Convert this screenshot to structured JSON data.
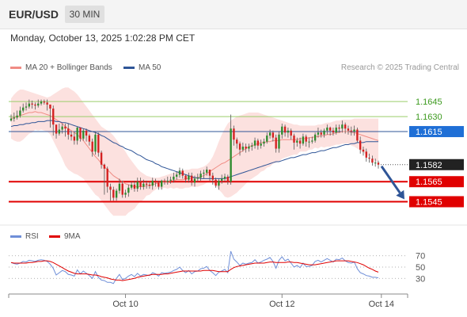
{
  "header": {
    "symbol": "EUR/USD",
    "timeframe": "30 MIN"
  },
  "datetime": "Monday, October 13, 2025 1:02:28 PM CET",
  "legend": [
    {
      "label": "MA 20 + Bollinger Bands",
      "color": "#f08c84"
    },
    {
      "label": "MA 50",
      "color": "#2f5597"
    }
  ],
  "credit": "Research © 2025 Trading Central",
  "rsi_legend": [
    {
      "label": "RSI",
      "color": "#6f8fd8"
    },
    {
      "label": "9MA",
      "color": "#e00000"
    }
  ],
  "colors": {
    "up": "#2e8b2e",
    "down": "#d42020",
    "resistance": "#9acd6a",
    "pivot": "#2f5597",
    "support": "#e00000",
    "forecast_arrow": "#2f5597"
  },
  "chart_data": [
    {
      "type": "candlestick",
      "ylim": [
        1.1528,
        1.1672
      ],
      "x_ticks": [
        "Oct 10",
        "Oct 12",
        "Oct 14"
      ],
      "current_price": "1.1582",
      "levels": [
        {
          "value": 1.1645,
          "label": "1.1645",
          "kind": "resistance"
        },
        {
          "value": 1.163,
          "label": "1.1630",
          "kind": "resistance"
        },
        {
          "value": 1.1615,
          "label": "1.1615",
          "kind": "pivot"
        },
        {
          "value": 1.1565,
          "label": "1.1565",
          "kind": "support"
        },
        {
          "value": 1.1545,
          "label": "1.1545",
          "kind": "support"
        }
      ],
      "close": [
        1.1628,
        1.1629,
        1.1631,
        1.1636,
        1.1639,
        1.164,
        1.1643,
        1.1642,
        1.1641,
        1.1643,
        1.1645,
        1.1644,
        1.1642,
        1.1638,
        1.1622,
        1.1613,
        1.1617,
        1.162,
        1.1618,
        1.1612,
        1.161,
        1.1606,
        1.1619,
        1.1608,
        1.1616,
        1.1611,
        1.1605,
        1.1595,
        1.1612,
        1.1594,
        1.1582,
        1.1578,
        1.156,
        1.1557,
        1.1549,
        1.1556,
        1.1563,
        1.1552,
        1.1554,
        1.1559,
        1.1562,
        1.1558,
        1.1565,
        1.156,
        1.1563,
        1.1562,
        1.1561,
        1.1566,
        1.1564,
        1.156,
        1.1566,
        1.1565,
        1.1566,
        1.1567,
        1.157,
        1.1572,
        1.1576,
        1.1571,
        1.1567,
        1.1571,
        1.1564,
        1.1568,
        1.1569,
        1.1573,
        1.1574,
        1.1577,
        1.1571,
        1.1567,
        1.1561,
        1.1566,
        1.1568,
        1.157,
        1.1565,
        1.1618,
        1.1607,
        1.1603,
        1.1597,
        1.16,
        1.1598,
        1.16,
        1.1601,
        1.1606,
        1.1601,
        1.1603,
        1.1605,
        1.1611,
        1.1614,
        1.1609,
        1.1598,
        1.1612,
        1.162,
        1.1614,
        1.1616,
        1.1611,
        1.1604,
        1.1606,
        1.1603,
        1.161,
        1.1605,
        1.1605,
        1.1606,
        1.1612,
        1.1614,
        1.1612,
        1.1616,
        1.1619,
        1.1616,
        1.1614,
        1.1619,
        1.1618,
        1.1622,
        1.1618,
        1.1616,
        1.1615,
        1.1617,
        1.1606,
        1.1597,
        1.1595,
        1.1589,
        1.1588,
        1.1584,
        1.1584,
        1.1582
      ],
      "high": [
        1.1632,
        1.1634,
        1.1636,
        1.164,
        1.1643,
        1.1644,
        1.1647,
        1.1646,
        1.1644,
        1.1647,
        1.1647,
        1.1647,
        1.1647,
        1.1641,
        1.1641,
        1.1618,
        1.1623,
        1.1623,
        1.1623,
        1.1623,
        1.1615,
        1.1615,
        1.162,
        1.1619,
        1.1618,
        1.1618,
        1.1613,
        1.1608,
        1.1615,
        1.1614,
        1.1596,
        1.1583,
        1.158,
        1.1563,
        1.156,
        1.1558,
        1.1568,
        1.1566,
        1.1557,
        1.1562,
        1.1565,
        1.1566,
        1.1569,
        1.1569,
        1.1567,
        1.1566,
        1.1565,
        1.1569,
        1.1568,
        1.1566,
        1.1567,
        1.1568,
        1.157,
        1.157,
        1.1574,
        1.1575,
        1.1579,
        1.1578,
        1.1572,
        1.1574,
        1.1574,
        1.1571,
        1.1573,
        1.1576,
        1.1577,
        1.158,
        1.1577,
        1.1574,
        1.1569,
        1.1568,
        1.1572,
        1.1573,
        1.1572,
        1.1632,
        1.1621,
        1.1609,
        1.1605,
        1.1604,
        1.1603,
        1.1603,
        1.1604,
        1.1609,
        1.1608,
        1.1607,
        1.1608,
        1.1614,
        1.1617,
        1.1616,
        1.1612,
        1.1615,
        1.1623,
        1.1622,
        1.1619,
        1.1618,
        1.1613,
        1.1609,
        1.1609,
        1.1613,
        1.1612,
        1.1609,
        1.161,
        1.1614,
        1.1619,
        1.1617,
        1.1618,
        1.1622,
        1.162,
        1.1619,
        1.1622,
        1.1622,
        1.1626,
        1.1624,
        1.1621,
        1.162,
        1.1621,
        1.1619,
        1.161,
        1.16,
        1.1598,
        1.1593,
        1.1591,
        1.1588,
        1.1586
      ],
      "low": [
        1.1625,
        1.1625,
        1.1627,
        1.1629,
        1.1634,
        1.1636,
        1.1638,
        1.1638,
        1.1637,
        1.1639,
        1.1641,
        1.1642,
        1.1636,
        1.1619,
        1.1611,
        1.1608,
        1.1611,
        1.1613,
        1.161,
        1.1607,
        1.1606,
        1.1602,
        1.1602,
        1.1605,
        1.1606,
        1.1605,
        1.1601,
        1.159,
        1.1592,
        1.159,
        1.1578,
        1.1552,
        1.1554,
        1.1546,
        1.1546,
        1.1546,
        1.1553,
        1.1549,
        1.1549,
        1.155,
        1.1557,
        1.1555,
        1.1555,
        1.1557,
        1.1557,
        1.1558,
        1.1558,
        1.1557,
        1.156,
        1.1557,
        1.1557,
        1.1562,
        1.1562,
        1.1563,
        1.1564,
        1.1567,
        1.1569,
        1.1568,
        1.1564,
        1.1564,
        1.1561,
        1.156,
        1.1565,
        1.1566,
        1.1568,
        1.1571,
        1.1566,
        1.1562,
        1.1559,
        1.1557,
        1.1563,
        1.1565,
        1.1562,
        1.1562,
        1.1601,
        1.1598,
        1.1591,
        1.1595,
        1.1594,
        1.1595,
        1.1596,
        1.1598,
        1.1597,
        1.1598,
        1.16,
        1.1603,
        1.1608,
        1.1605,
        1.1594,
        1.1594,
        1.1608,
        1.161,
        1.1609,
        1.1607,
        1.1597,
        1.16,
        1.1598,
        1.1601,
        1.16,
        1.1599,
        1.1603,
        1.1604,
        1.1609,
        1.1609,
        1.1609,
        1.1612,
        1.1611,
        1.1611,
        1.1612,
        1.1614,
        1.1614,
        1.1613,
        1.1612,
        1.1611,
        1.1611,
        1.1604,
        1.1593,
        1.1591,
        1.1585,
        1.1584,
        1.1581,
        1.158,
        1.1578
      ],
      "ma20": [
        1.1628,
        1.1629,
        1.163,
        1.1631,
        1.1632,
        1.1633,
        1.1634,
        1.1634,
        1.1635,
        1.1634,
        1.1634,
        1.1633,
        1.1632,
        1.1631,
        1.1629,
        1.1627,
        1.1625,
        1.1623,
        1.162,
        1.1618,
        1.1616,
        1.1614,
        1.1612,
        1.1609,
        1.1606,
        1.1602,
        1.1598,
        1.1594,
        1.159,
        1.1587,
        1.1583,
        1.158,
        1.1577,
        1.1574,
        1.1571,
        1.1569,
        1.1567,
        1.1565,
        1.1563,
        1.1562,
        1.1561,
        1.156,
        1.156,
        1.156,
        1.156,
        1.1561,
        1.1561,
        1.1562,
        1.1563,
        1.1564,
        1.1564,
        1.1565,
        1.1565,
        1.1566,
        1.1566,
        1.1567,
        1.1567,
        1.1567,
        1.1568,
        1.1568,
        1.1569,
        1.1569,
        1.1569,
        1.157,
        1.1571,
        1.1573,
        1.1575,
        1.1577,
        1.1579,
        1.1581,
        1.1583,
        1.1584,
        1.1586,
        1.1588,
        1.159,
        1.1592,
        1.1594,
        1.1596,
        1.1598,
        1.16,
        1.1601,
        1.1602,
        1.1603,
        1.1604,
        1.1604,
        1.1605,
        1.1605,
        1.1606,
        1.1606,
        1.1606,
        1.1607,
        1.1607,
        1.1607,
        1.1607,
        1.1607,
        1.1607,
        1.1608,
        1.1608,
        1.1608,
        1.1609,
        1.1609,
        1.161,
        1.161,
        1.1611,
        1.1611,
        1.1612,
        1.1612,
        1.1613,
        1.1614,
        1.1614,
        1.1615,
        1.1615,
        1.1615,
        1.1614,
        1.1614,
        1.1613,
        1.1612,
        1.1611,
        1.161,
        1.1609,
        1.1608,
        1.1607,
        1.1606
      ],
      "bb_upper": [
        1.1648,
        1.1652,
        1.1655,
        1.1657,
        1.1657,
        1.1656,
        1.1655,
        1.1654,
        1.1653,
        1.1652,
        1.1651,
        1.165,
        1.1649,
        1.165,
        1.1652,
        1.1654,
        1.1656,
        1.1658,
        1.1659,
        1.1659,
        1.1657,
        1.1655,
        1.1652,
        1.1648,
        1.1644,
        1.164,
        1.1636,
        1.1632,
        1.1628,
        1.1624,
        1.162,
        1.1618,
        1.1616,
        1.1614,
        1.1611,
        1.1607,
        1.1603,
        1.1599,
        1.1595,
        1.159,
        1.1586,
        1.1582,
        1.1578,
        1.1575,
        1.1573,
        1.1571,
        1.157,
        1.1569,
        1.1569,
        1.1569,
        1.157,
        1.1571,
        1.1572,
        1.1573,
        1.1574,
        1.1575,
        1.1576,
        1.1576,
        1.1577,
        1.1577,
        1.1578,
        1.1578,
        1.1578,
        1.1579,
        1.158,
        1.1582,
        1.1585,
        1.159,
        1.1597,
        1.1605,
        1.1612,
        1.1618,
        1.1623,
        1.1626,
        1.1628,
        1.163,
        1.1631,
        1.1632,
        1.1633,
        1.1634,
        1.1634,
        1.1634,
        1.1634,
        1.1633,
        1.1632,
        1.1631,
        1.163,
        1.1629,
        1.1628,
        1.1627,
        1.1626,
        1.1625,
        1.1624,
        1.1623,
        1.1622,
        1.1622,
        1.1621,
        1.1621,
        1.1621,
        1.1621,
        1.1621,
        1.1621,
        1.1622,
        1.1622,
        1.1623,
        1.1624,
        1.1624,
        1.1625,
        1.1626,
        1.1626,
        1.1627,
        1.1627,
        1.1627,
        1.1627,
        1.1628,
        1.1628,
        1.1628,
        1.1628,
        1.1628,
        1.1628,
        1.1628,
        1.1628,
        1.1628
      ],
      "bb_lower": [
        1.1608,
        1.1606,
        1.1605,
        1.1605,
        1.1607,
        1.161,
        1.1613,
        1.1614,
        1.1617,
        1.1616,
        1.1617,
        1.1616,
        1.1615,
        1.1612,
        1.1606,
        1.16,
        1.1594,
        1.1588,
        1.1581,
        1.1577,
        1.1575,
        1.1573,
        1.1572,
        1.157,
        1.1568,
        1.1564,
        1.156,
        1.1556,
        1.1552,
        1.155,
        1.1546,
        1.1542,
        1.1538,
        1.1534,
        1.1531,
        1.1531,
        1.1531,
        1.1531,
        1.1531,
        1.1534,
        1.1536,
        1.1538,
        1.1542,
        1.1545,
        1.1547,
        1.1551,
        1.1552,
        1.1555,
        1.1557,
        1.1559,
        1.1558,
        1.1559,
        1.1558,
        1.1559,
        1.1558,
        1.1559,
        1.1558,
        1.1558,
        1.1559,
        1.1559,
        1.156,
        1.156,
        1.156,
        1.1561,
        1.1562,
        1.1564,
        1.1565,
        1.1564,
        1.1561,
        1.1557,
        1.1554,
        1.155,
        1.1549,
        1.155,
        1.1552,
        1.1554,
        1.1557,
        1.156,
        1.1563,
        1.1566,
        1.1568,
        1.157,
        1.1572,
        1.1575,
        1.1576,
        1.1579,
        1.158,
        1.1583,
        1.1584,
        1.1585,
        1.1588,
        1.1589,
        1.159,
        1.1591,
        1.1592,
        1.1592,
        1.1595,
        1.1595,
        1.1595,
        1.1597,
        1.1597,
        1.1599,
        1.1598,
        1.16,
        1.1599,
        1.16,
        1.16,
        1.1601,
        1.1602,
        1.1602,
        1.1603,
        1.1603,
        1.1603,
        1.1601,
        1.16,
        1.1598,
        1.1596,
        1.1594,
        1.1592,
        1.159,
        1.1588,
        1.1586,
        1.1584
      ],
      "ma50": [
        1.162,
        1.1621,
        1.1621,
        1.1622,
        1.1622,
        1.1623,
        1.1623,
        1.1624,
        1.1624,
        1.1625,
        1.1625,
        1.1625,
        1.1626,
        1.1626,
        1.1626,
        1.1625,
        1.1625,
        1.1624,
        1.1624,
        1.1623,
        1.1622,
        1.1621,
        1.162,
        1.1619,
        1.1618,
        1.1617,
        1.1616,
        1.1615,
        1.1614,
        1.1613,
        1.1611,
        1.161,
        1.1608,
        1.1606,
        1.1604,
        1.1603,
        1.1601,
        1.16,
        1.1598,
        1.1597,
        1.1596,
        1.1594,
        1.1592,
        1.1591,
        1.1589,
        1.1587,
        1.1586,
        1.1585,
        1.1583,
        1.1582,
        1.158,
        1.1579,
        1.1578,
        1.1577,
        1.1576,
        1.1575,
        1.1574,
        1.1573,
        1.1572,
        1.1571,
        1.157,
        1.1569,
        1.1569,
        1.1568,
        1.1568,
        1.1568,
        1.1568,
        1.1568,
        1.1568,
        1.1568,
        1.1568,
        1.1568,
        1.1569,
        1.157,
        1.1571,
        1.1572,
        1.1573,
        1.1574,
        1.1575,
        1.1576,
        1.1577,
        1.1578,
        1.1579,
        1.158,
        1.1581,
        1.1582,
        1.1583,
        1.1584,
        1.1585,
        1.1585,
        1.1586,
        1.1587,
        1.1588,
        1.1589,
        1.1589,
        1.159,
        1.1591,
        1.1592,
        1.1592,
        1.1593,
        1.1594,
        1.1594,
        1.1595,
        1.1596,
        1.1596,
        1.1597,
        1.1598,
        1.1599,
        1.1599,
        1.16,
        1.1601,
        1.1602,
        1.1602,
        1.1603,
        1.1603,
        1.1604,
        1.1604,
        1.1604,
        1.1605,
        1.1605,
        1.1605,
        1.1605,
        1.1605
      ]
    },
    {
      "type": "line",
      "ylim": [
        15,
        85
      ],
      "y_ticks": [
        30,
        50,
        70
      ],
      "rsi": [
        58,
        56,
        55,
        57,
        60,
        59,
        62,
        61,
        60,
        62,
        63,
        62,
        60,
        55,
        48,
        36,
        40,
        44,
        42,
        37,
        36,
        34,
        45,
        38,
        43,
        39,
        35,
        30,
        42,
        32,
        27,
        26,
        23,
        23,
        21,
        30,
        37,
        28,
        30,
        34,
        37,
        33,
        39,
        34,
        37,
        36,
        35,
        40,
        38,
        34,
        40,
        39,
        40,
        41,
        44,
        46,
        50,
        44,
        40,
        44,
        38,
        42,
        43,
        47,
        48,
        51,
        44,
        40,
        35,
        41,
        43,
        46,
        40,
        78,
        64,
        59,
        53,
        57,
        55,
        57,
        58,
        63,
        57,
        59,
        62,
        64,
        67,
        60,
        48,
        62,
        68,
        61,
        64,
        57,
        50,
        53,
        49,
        57,
        51,
        51,
        53,
        60,
        62,
        59,
        62,
        65,
        62,
        59,
        64,
        63,
        66,
        61,
        58,
        57,
        59,
        47,
        40,
        38,
        35,
        34,
        32,
        32,
        31
      ],
      "ma9": [
        58,
        57,
        57,
        57,
        57,
        57,
        58,
        58,
        59,
        60,
        60,
        61,
        61,
        60,
        58,
        55,
        52,
        49,
        46,
        43,
        41,
        39,
        38,
        38,
        38,
        38,
        37,
        36,
        36,
        35,
        33,
        32,
        31,
        29,
        28,
        27,
        27,
        26,
        27,
        28,
        29,
        30,
        32,
        33,
        34,
        35,
        36,
        37,
        37,
        37,
        37,
        38,
        38,
        39,
        40,
        41,
        42,
        43,
        43,
        43,
        43,
        43,
        43,
        43,
        44,
        44,
        44,
        44,
        43,
        42,
        42,
        42,
        42,
        46,
        49,
        51,
        52,
        53,
        54,
        55,
        56,
        57,
        57,
        57,
        57,
        58,
        59,
        59,
        58,
        58,
        58,
        58,
        59,
        59,
        58,
        58,
        57,
        56,
        55,
        54,
        54,
        54,
        55,
        56,
        57,
        58,
        59,
        60,
        61,
        61,
        61,
        61,
        61,
        60,
        59,
        58,
        56,
        54,
        51,
        48,
        46,
        43,
        41
      ]
    }
  ]
}
